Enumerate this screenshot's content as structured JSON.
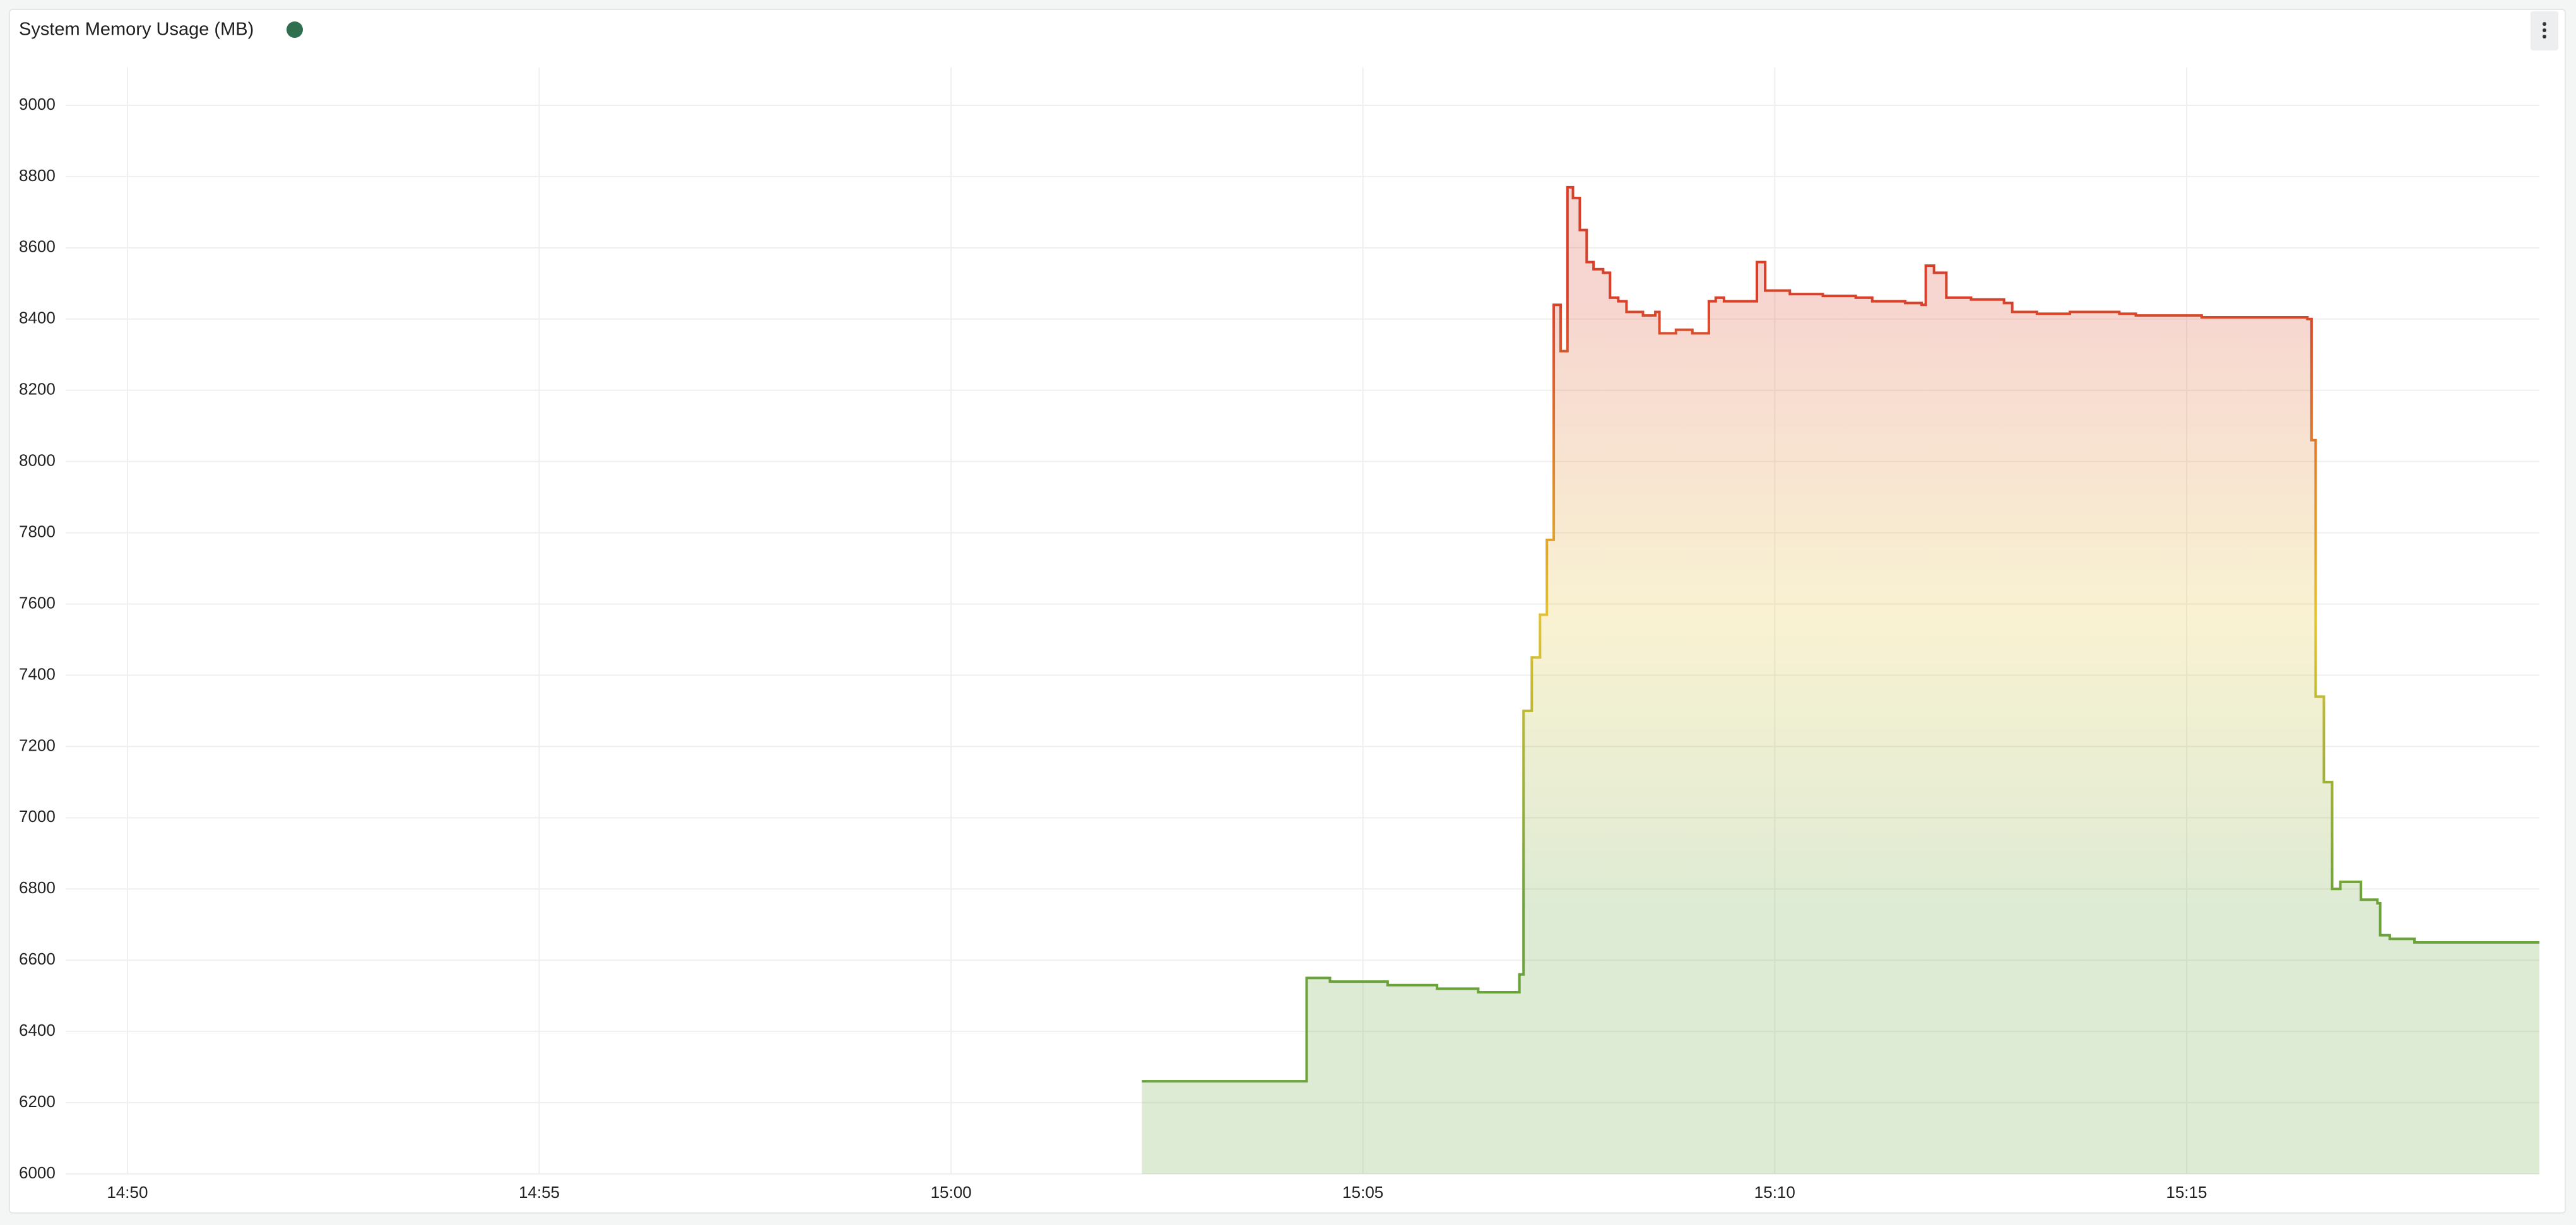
{
  "chart_data": {
    "type": "line",
    "title": "System Memory Usage (MB)",
    "x": [
      "15:02:19",
      "15:04:19",
      "15:04:36",
      "15:05:18",
      "15:05:54",
      "15:06:24",
      "15:06:50",
      "15:06:54",
      "15:06:57",
      "15:07:03",
      "15:07:09",
      "15:07:14",
      "15:07:19",
      "15:07:24",
      "15:07:29",
      "15:07:33",
      "15:07:38",
      "15:07:43",
      "15:07:48",
      "15:07:55",
      "15:08:00",
      "15:08:06",
      "15:08:12",
      "15:08:24",
      "15:08:33",
      "15:08:36",
      "15:08:48",
      "15:09:00",
      "15:09:12",
      "15:09:17",
      "15:09:23",
      "15:09:45",
      "15:09:47",
      "15:09:53",
      "15:10:11",
      "15:10:35",
      "15:10:59",
      "15:11:11",
      "15:11:35",
      "15:11:47",
      "15:11:50",
      "15:11:56",
      "15:12:05",
      "15:12:23",
      "15:12:47",
      "15:12:53",
      "15:13:11",
      "15:13:35",
      "15:14:11",
      "15:14:23",
      "15:15:11",
      "15:16:10",
      "15:16:28",
      "15:16:31",
      "15:16:34",
      "15:16:40",
      "15:16:46",
      "15:16:52",
      "15:17:07",
      "15:17:19",
      "15:17:21",
      "15:17:28",
      "15:17:40",
      "15:17:46",
      "15:18:22",
      "15:19:17"
    ],
    "series": [
      {
        "name": "System Memory Usage (MB)",
        "color": "#2f6e4f",
        "gradient": [
          "#6aa33a",
          "#e3c331",
          "#d9402a"
        ],
        "values": [
          6260,
          6550,
          6540,
          6530,
          6520,
          6510,
          6510,
          6560,
          7300,
          7450,
          7570,
          7780,
          8440,
          8310,
          8770,
          8740,
          8650,
          8560,
          8540,
          8530,
          8460,
          8450,
          8420,
          8410,
          8420,
          8360,
          8370,
          8360,
          8450,
          8460,
          8450,
          8450,
          8560,
          8480,
          8470,
          8465,
          8460,
          8450,
          8445,
          8440,
          8550,
          8530,
          8460,
          8455,
          8445,
          8420,
          8415,
          8420,
          8415,
          8410,
          8405,
          8405,
          8400,
          8060,
          7340,
          7100,
          6800,
          6820,
          6770,
          6760,
          6670,
          6660,
          6660,
          6650,
          6650,
          6650
        ]
      }
    ],
    "xlim": [
      "14:49:15",
      "15:19:17"
    ],
    "xticks": [
      "14:50",
      "14:55",
      "15:00",
      "15:05",
      "15:10",
      "15:15"
    ],
    "ylim": [
      6000,
      9000
    ],
    "yticks": [
      6000,
      6200,
      6400,
      6600,
      6800,
      7000,
      7200,
      7400,
      7600,
      7800,
      8000,
      8200,
      8400,
      8600,
      8800,
      9000
    ],
    "grid": true
  }
}
